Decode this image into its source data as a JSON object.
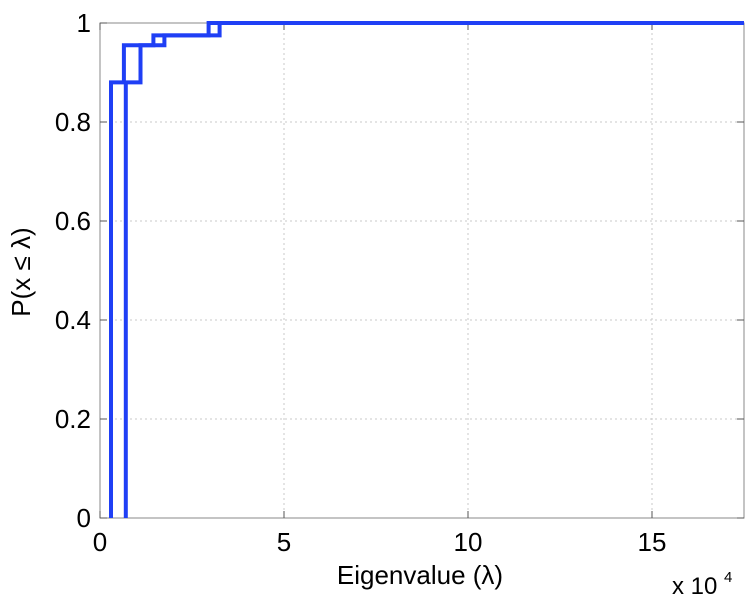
{
  "chart_data": {
    "type": "line",
    "subtype": "empirical-cdf-step",
    "title": "",
    "xlabel": "Eigenvalue (λ)",
    "ylabel": "P(x ≤ λ)",
    "x_exponent_label": "x 10",
    "x_exponent_power": "4",
    "xlim": [
      0,
      17.5
    ],
    "ylim": [
      0,
      1
    ],
    "x_ticks": [
      0,
      5,
      10,
      15
    ],
    "x_tick_labels": [
      "0",
      "5",
      "10",
      "15"
    ],
    "y_ticks": [
      0,
      0.2,
      0.4,
      0.6,
      0.8,
      1
    ],
    "y_tick_labels": [
      "0",
      "0.2",
      "0.4",
      "0.6",
      "0.8",
      "1"
    ],
    "grid": true,
    "line_color": "#1f3ff5",
    "series": [
      {
        "x": [
          0.3,
          0.3,
          0.65,
          0.65,
          1.45,
          1.45,
          2.95,
          2.95,
          17.5
        ],
        "y": [
          0,
          0.88,
          0.88,
          0.955,
          0.955,
          0.975,
          0.975,
          1.0,
          1.0
        ]
      },
      {
        "x": [
          0.7,
          0.7,
          1.1,
          1.1,
          1.75,
          1.75,
          3.25,
          3.25,
          17.5
        ],
        "y": [
          0,
          0.88,
          0.88,
          0.955,
          0.955,
          0.975,
          0.975,
          1.0,
          1.0
        ]
      }
    ]
  }
}
